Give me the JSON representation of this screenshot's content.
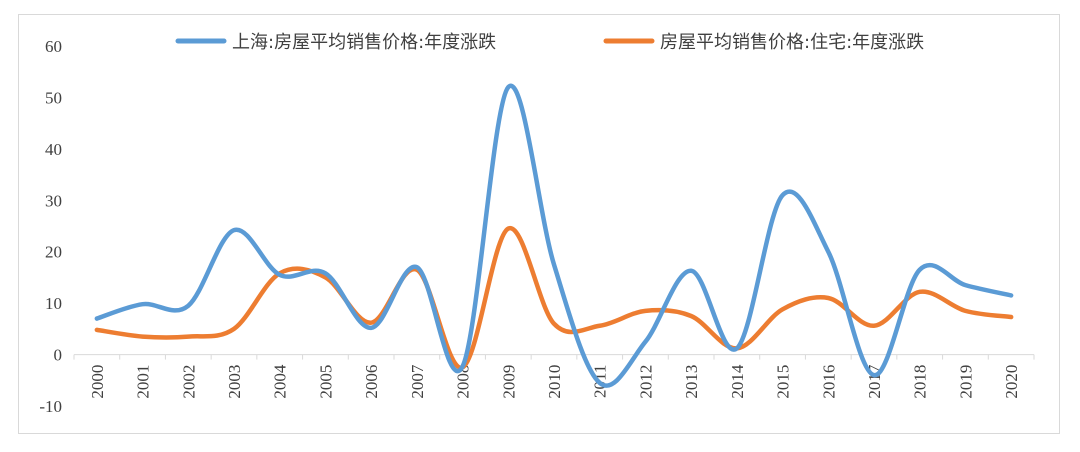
{
  "chart_data": {
    "type": "line",
    "title": "",
    "xlabel": "",
    "ylabel": "",
    "ylim": [
      -10,
      60
    ],
    "yticks": [
      -10,
      0,
      10,
      20,
      30,
      40,
      50,
      60
    ],
    "categories": [
      "2000",
      "2001",
      "2002",
      "2003",
      "2004",
      "2005",
      "2006",
      "2007",
      "2008",
      "2009",
      "2010",
      "2011",
      "2012",
      "2013",
      "2014",
      "2015",
      "2016",
      "2017",
      "2018",
      "2019",
      "2020"
    ],
    "legend_position": "top",
    "grid": false,
    "series": [
      {
        "name": "上海:房屋平均销售价格:年度涨跌",
        "color": "#5b9bd5",
        "values": [
          7,
          9.8,
          9.5,
          24.2,
          15.5,
          15.8,
          5.2,
          17,
          -2.3,
          52,
          17.5,
          -5.5,
          2.5,
          16.3,
          1.2,
          31,
          20,
          -4,
          16.5,
          13.5,
          11.5
        ]
      },
      {
        "name": "房屋平均销售价格:住宅:年度涨跌",
        "color": "#ed7d31",
        "values": [
          4.8,
          3.5,
          3.5,
          5,
          15.8,
          15,
          6.2,
          16.5,
          -2.5,
          24.5,
          6,
          5.6,
          8.5,
          7.5,
          1.2,
          8.8,
          11,
          5.6,
          12.2,
          8.5,
          7.3
        ]
      }
    ]
  }
}
